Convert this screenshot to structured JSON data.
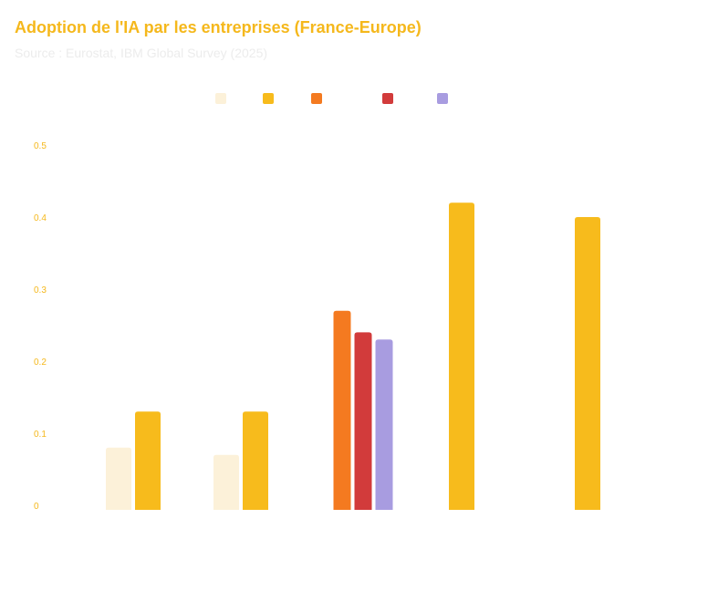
{
  "header": {
    "title": "Adoption de l'IA par les entreprises (France-Europe)",
    "subtitle": "Source : Eurostat, IBM Global Survey (2025)"
  },
  "legend": {
    "entries": [
      {
        "color": "#fcf1d9"
      },
      {
        "color": "#f7bb1c"
      },
      {
        "color": "#f47a20"
      },
      {
        "color": "#d23b3b"
      },
      {
        "color": "#a89ce0"
      }
    ]
  },
  "chart_data": {
    "type": "bar",
    "title": "Adoption de l'IA par les entreprises (France-Europe)",
    "subtitle": "Source : Eurostat, IBM Global Survey (2025)",
    "xlabel": "",
    "ylabel": "",
    "ylim": [
      0,
      0.5
    ],
    "yticks": [
      "0",
      "0.1",
      "0.2",
      "0.3",
      "0.4",
      "0.5"
    ],
    "grid": false,
    "legend_position": "top",
    "groups": [
      {
        "bars": [
          {
            "series": 0,
            "value": 0.08
          },
          {
            "series": 1,
            "value": 0.13
          }
        ]
      },
      {
        "bars": [
          {
            "series": 0,
            "value": 0.07
          },
          {
            "series": 1,
            "value": 0.13
          }
        ]
      },
      {
        "bars": [
          {
            "series": 2,
            "value": 0.27
          },
          {
            "series": 3,
            "value": 0.24
          },
          {
            "series": 4,
            "value": 0.23
          }
        ]
      },
      {
        "bars": [
          {
            "series": 1,
            "value": 0.42
          }
        ]
      },
      {
        "bars": [
          {
            "series": 1,
            "value": 0.4
          }
        ]
      }
    ],
    "series_colors": [
      "#fcf1d9",
      "#f7bb1c",
      "#f47a20",
      "#d23b3b",
      "#a89ce0"
    ]
  }
}
